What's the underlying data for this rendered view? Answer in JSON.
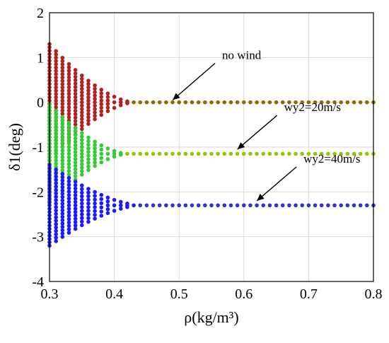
{
  "chart_data": {
    "type": "scatter",
    "title": "",
    "xlabel": "ρ(kg/m³)",
    "ylabel": "δ1(deg)",
    "xlim": [
      0.3,
      0.8
    ],
    "ylim": [
      -4,
      2
    ],
    "xticks": [
      "0.3",
      "0.4",
      "0.5",
      "0.6",
      "0.7",
      "0.8"
    ],
    "yticks": [
      "-4",
      "-3",
      "-2",
      "-1",
      "0",
      "1",
      "2"
    ],
    "grid": true,
    "series": [
      {
        "color": "#b22222",
        "tail_color": "#8a6d00",
        "steady_value": 0.0,
        "initial_spread": 1.3,
        "settle_rho": 0.43,
        "x_start": 0.3,
        "x_end": 0.8,
        "x_step": 0.01
      },
      {
        "color": "#33cc33",
        "tail_color": "#88cc00",
        "steady_value": -1.15,
        "initial_spread": 1.1,
        "settle_rho": 0.42,
        "x_start": 0.3,
        "x_end": 0.8,
        "x_step": 0.01
      },
      {
        "color": "#1a1aff",
        "tail_color": "#3333cc",
        "steady_value": -2.3,
        "initial_spread": 0.9,
        "settle_rho": 0.44,
        "x_start": 0.3,
        "x_end": 0.8,
        "x_step": 0.01
      }
    ],
    "annotations": [
      {
        "text": "no wind",
        "target_x": 0.49,
        "target_y": 0.05
      },
      {
        "text": "wy2=20m/s",
        "target_x": 0.59,
        "target_y": -1.05
      },
      {
        "text": "wy2=40m/s",
        "target_x": 0.62,
        "target_y": -2.2
      }
    ]
  }
}
